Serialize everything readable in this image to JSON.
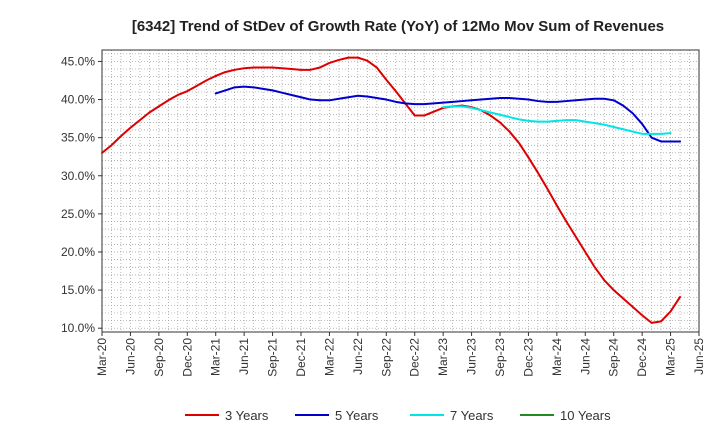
{
  "chart_data": {
    "type": "line",
    "title": "[6342]  Trend of StDev of Growth Rate (YoY) of 12Mo Mov Sum of Revenues",
    "xlabel": "",
    "ylabel": "",
    "ylim": [
      9.5,
      46.5
    ],
    "y_ticks": [
      10,
      15,
      20,
      25,
      30,
      35,
      40,
      45
    ],
    "y_tick_labels": [
      "10.0%",
      "15.0%",
      "20.0%",
      "25.0%",
      "30.0%",
      "35.0%",
      "40.0%",
      "45.0%"
    ],
    "x_tick_labels": [
      "Mar-20",
      "Jun-20",
      "Sep-20",
      "Dec-20",
      "Mar-21",
      "Jun-21",
      "Sep-21",
      "Dec-21",
      "Mar-22",
      "Jun-22",
      "Sep-22",
      "Dec-22",
      "Mar-23",
      "Jun-23",
      "Sep-23",
      "Dec-23",
      "Mar-24",
      "Jun-24",
      "Sep-24",
      "Dec-24",
      "Mar-25",
      "Jun-25"
    ],
    "x_start_month": 0,
    "x_end_month": 63,
    "grid": true,
    "legend_position": "bottom",
    "series": [
      {
        "name": "3 Years",
        "color": "#dd0000",
        "start_month": 0,
        "values": [
          33.0,
          34.0,
          35.2,
          36.3,
          37.3,
          38.3,
          39.1,
          39.9,
          40.6,
          41.1,
          41.8,
          42.5,
          43.1,
          43.6,
          43.9,
          44.1,
          44.2,
          44.2,
          44.2,
          44.1,
          44.0,
          43.9,
          43.9,
          44.2,
          44.8,
          45.2,
          45.5,
          45.5,
          45.1,
          44.2,
          42.6,
          41.1,
          39.5,
          37.9,
          37.9,
          38.4,
          38.9,
          39.1,
          39.2,
          39.0,
          38.6,
          37.9,
          37.0,
          35.8,
          34.3,
          32.4,
          30.4,
          28.3,
          26.1,
          24.0,
          22.0,
          20.0,
          18.0,
          16.3,
          15.0,
          13.9,
          12.8,
          11.7,
          10.7,
          10.9,
          12.2,
          14.1
        ]
      },
      {
        "name": "5 Years",
        "color": "#0000cc",
        "start_month": 12,
        "values": [
          40.8,
          41.2,
          41.6,
          41.7,
          41.6,
          41.4,
          41.2,
          40.9,
          40.6,
          40.3,
          40.0,
          39.9,
          39.9,
          40.1,
          40.3,
          40.5,
          40.4,
          40.2,
          40.0,
          39.7,
          39.5,
          39.4,
          39.4,
          39.5,
          39.6,
          39.7,
          39.8,
          39.9,
          40.0,
          40.1,
          40.2,
          40.2,
          40.1,
          40.0,
          39.8,
          39.7,
          39.7,
          39.8,
          39.9,
          40.0,
          40.1,
          40.1,
          39.9,
          39.2,
          38.2,
          36.8,
          35.0,
          34.5,
          34.5,
          34.5
        ]
      },
      {
        "name": "7 Years",
        "color": "#00e5e5",
        "start_month": 36,
        "values": [
          39.0,
          39.1,
          39.1,
          38.9,
          38.6,
          38.3,
          38.0,
          37.7,
          37.4,
          37.2,
          37.1,
          37.1,
          37.2,
          37.3,
          37.3,
          37.1,
          36.9,
          36.7,
          36.4,
          36.1,
          35.8,
          35.5,
          35.5,
          35.5,
          35.6
        ]
      },
      {
        "name": "10 Years",
        "color": "#228B22",
        "start_month": 0,
        "values": []
      }
    ]
  }
}
